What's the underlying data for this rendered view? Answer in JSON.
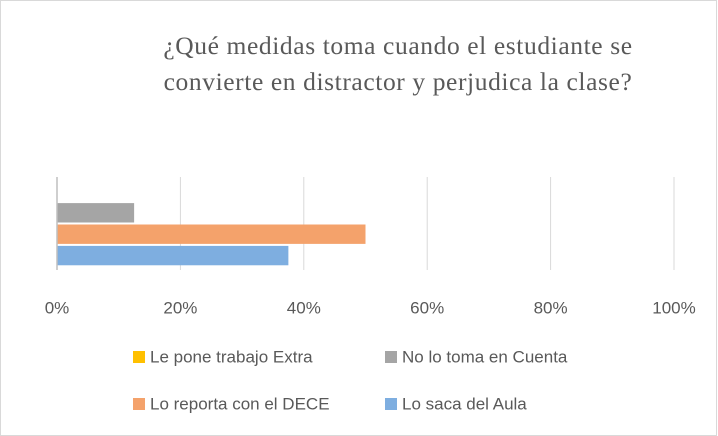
{
  "chart_data": {
    "type": "bar",
    "orientation": "horizontal",
    "title": "¿Qué medidas toma cuando el estudiante se convierte en distractor y perjudica la clase?",
    "categories": [
      null
    ],
    "series": [
      {
        "name": "Le pone trabajo Extra",
        "color": "#ffc000",
        "values": [
          0
        ]
      },
      {
        "name": "No lo toma en Cuenta",
        "color": "#a5a5a5",
        "values": [
          12.5
        ]
      },
      {
        "name": "Lo reporta con el DECE",
        "color": "#f4a26b",
        "values": [
          50
        ]
      },
      {
        "name": "Lo saca del Aula",
        "color": "#7eaee0",
        "values": [
          37.5
        ]
      }
    ],
    "xlim": [
      0,
      100
    ],
    "xticks": [
      {
        "value": 0,
        "label": "0%"
      },
      {
        "value": 20,
        "label": "20%"
      },
      {
        "value": 40,
        "label": "40%"
      },
      {
        "value": 60,
        "label": "60%"
      },
      {
        "value": 80,
        "label": "80%"
      },
      {
        "value": 100,
        "label": "100%"
      }
    ],
    "grid": true,
    "legend": "bottom"
  }
}
